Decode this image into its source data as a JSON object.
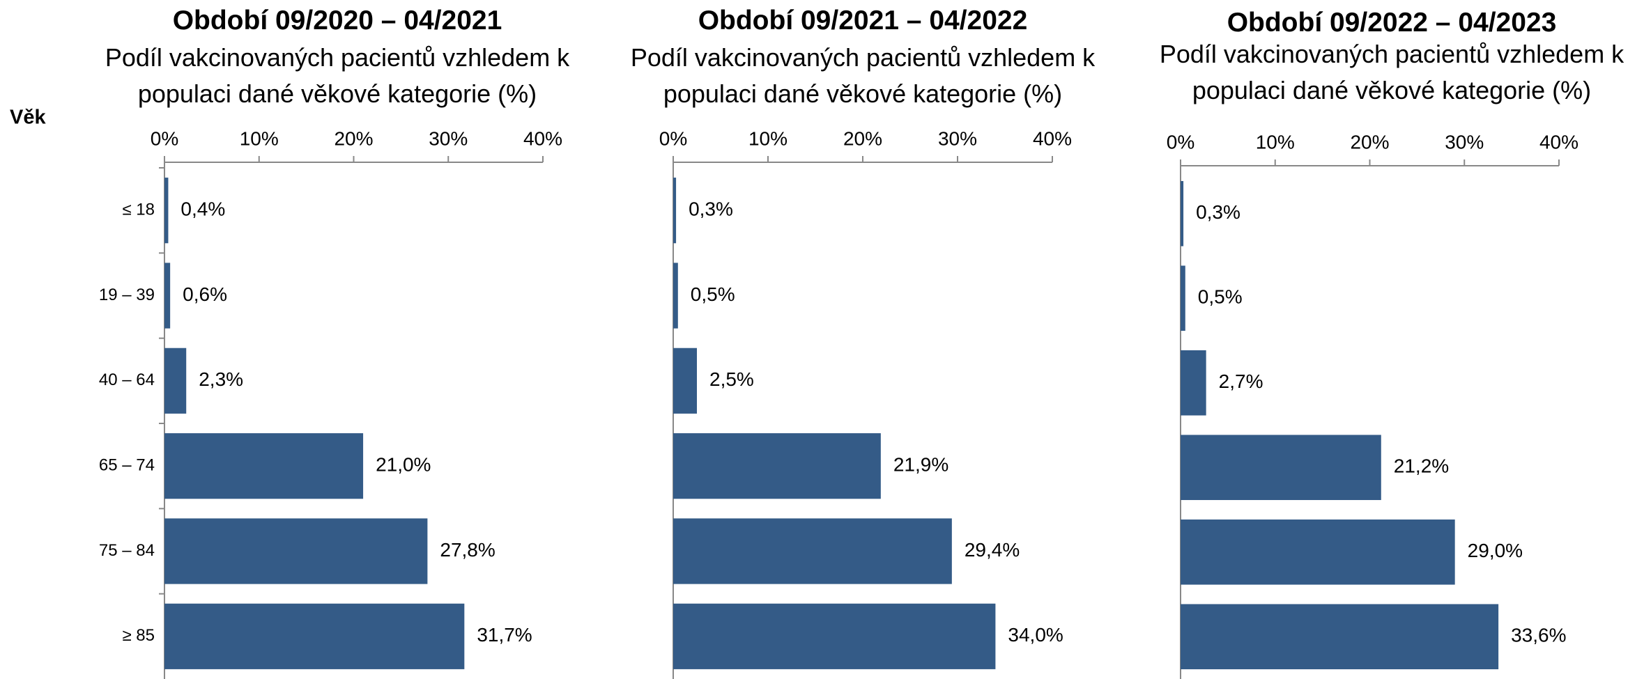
{
  "chart_data": [
    {
      "type": "bar",
      "orientation": "horizontal",
      "title": "Období 09/2020 – 04/2021",
      "subtitle": "Podíl vakcinovaných pacientů vzhledem k populaci dané věkové kategorie (%)",
      "ylabel": "Věk",
      "categories": [
        "≤ 18",
        "19 – 39",
        "40 – 64",
        "65 – 74",
        "75 – 84",
        "≥ 85"
      ],
      "values": [
        0.4,
        0.6,
        2.3,
        21.0,
        27.8,
        31.7
      ],
      "value_labels": [
        "0,4%",
        "0,6%",
        "2,3%",
        "21,0%",
        "27,8%",
        "31,7%"
      ],
      "color": "#345b87",
      "xlim": [
        0,
        40
      ],
      "xticks": [
        {
          "value": 0,
          "label": "0%"
        },
        {
          "value": 10,
          "label": "10%"
        },
        {
          "value": 20,
          "label": "20%"
        },
        {
          "value": 30,
          "label": "30%"
        },
        {
          "value": 40,
          "label": "40%"
        }
      ]
    },
    {
      "type": "bar",
      "orientation": "horizontal",
      "title": "Období 09/2021 – 04/2022",
      "subtitle": "Podíl vakcinovaných pacientů vzhledem k populaci dané věkové kategorie (%)",
      "values": [
        0.3,
        0.5,
        2.5,
        21.9,
        29.4,
        34.0
      ],
      "value_labels": [
        "0,3%",
        "0,5%",
        "2,5%",
        "21,9%",
        "29,4%",
        "34,0%"
      ],
      "color": "#345b87",
      "xlim": [
        0,
        40
      ],
      "xticks": [
        {
          "value": 0,
          "label": "0%"
        },
        {
          "value": 10,
          "label": "10%"
        },
        {
          "value": 20,
          "label": "20%"
        },
        {
          "value": 30,
          "label": "30%"
        },
        {
          "value": 40,
          "label": "40%"
        }
      ]
    },
    {
      "type": "bar",
      "orientation": "horizontal",
      "title": "Období 09/2022 – 04/2023",
      "subtitle": "Podíl vakcinovaných pacientů vzhledem k populaci dané věkové kategorie (%)",
      "values": [
        0.3,
        0.5,
        2.7,
        21.2,
        29.0,
        33.6
      ],
      "value_labels": [
        "0,3%",
        "0,5%",
        "2,7%",
        "21,2%",
        "29,0%",
        "33,6%"
      ],
      "color": "#345b87",
      "xlim": [
        0,
        40
      ],
      "xticks": [
        {
          "value": 0,
          "label": "0%"
        },
        {
          "value": 10,
          "label": "10%"
        },
        {
          "value": 20,
          "label": "20%"
        },
        {
          "value": 30,
          "label": "30%"
        },
        {
          "value": 40,
          "label": "40%"
        }
      ]
    }
  ]
}
